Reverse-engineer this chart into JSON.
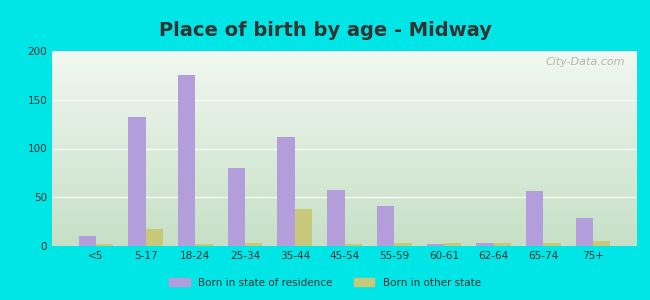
{
  "title": "Place of birth by age - Midway",
  "categories": [
    "<5",
    "5-17",
    "18-24",
    "25-34",
    "35-44",
    "45-54",
    "55-59",
    "60-61",
    "62-64",
    "65-74",
    "75+"
  ],
  "born_in_state": [
    10,
    132,
    175,
    80,
    112,
    57,
    41,
    2,
    3,
    56,
    29
  ],
  "born_in_other": [
    2,
    17,
    2,
    3,
    38,
    2,
    3,
    3,
    3,
    3,
    5
  ],
  "color_state": "#b39ddb",
  "color_other": "#c8c87a",
  "background_outer": "#00e5e5",
  "background_plot_top": "#f0f7f0",
  "background_plot_bottom": "#c5dfc5",
  "ylim": [
    0,
    200
  ],
  "yticks": [
    0,
    50,
    100,
    150,
    200
  ],
  "legend_state": "Born in state of residence",
  "legend_other": "Born in other state",
  "bar_width": 0.35,
  "watermark": "City-Data.com",
  "title_fontsize": 14,
  "title_color": "#333333"
}
